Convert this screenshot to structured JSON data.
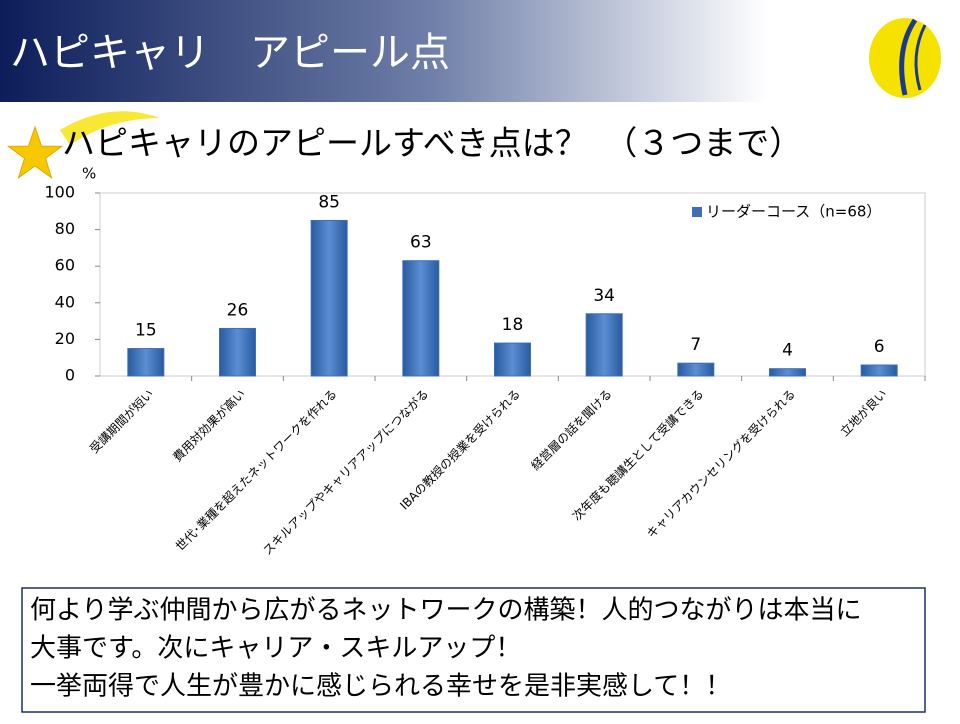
{
  "header": {
    "title": "ハピキャリ　アピール点"
  },
  "chart_data": {
    "type": "bar",
    "title": "ハピキャリのアピールすべき点は？　（３つまで）",
    "y_label": "%",
    "categories": [
      "受講期間が短い",
      "費用対効果が高い",
      "世代･業種を超えたネットワークを作れる",
      "スキルアップやキャリアアップにつながる",
      "IBAの教授の授業を受けられる",
      "経営層の話を聞ける",
      "次年度も聴講生として受講できる",
      "キャリアカウンセリングを受けられる",
      "立地が良い"
    ],
    "series": [
      {
        "name": "リーダーコース（n=68）",
        "color": "#3d6fb6",
        "values": [
          15,
          26,
          85,
          63,
          18,
          34,
          7,
          4,
          6
        ]
      }
    ],
    "ylim": [
      0,
      100
    ],
    "yticks": [
      0,
      20,
      40,
      60,
      80,
      100
    ],
    "grid": false,
    "legend": "top-right"
  },
  "footer": {
    "lines": [
      "何より学ぶ仲間から広がるネットワークの構築！人的つながりは本当に",
      "大事です。次にキャリア・スキルアップ！",
      "一挙両得で人生が豊かに感じられる幸せを是非実感して！！"
    ]
  }
}
